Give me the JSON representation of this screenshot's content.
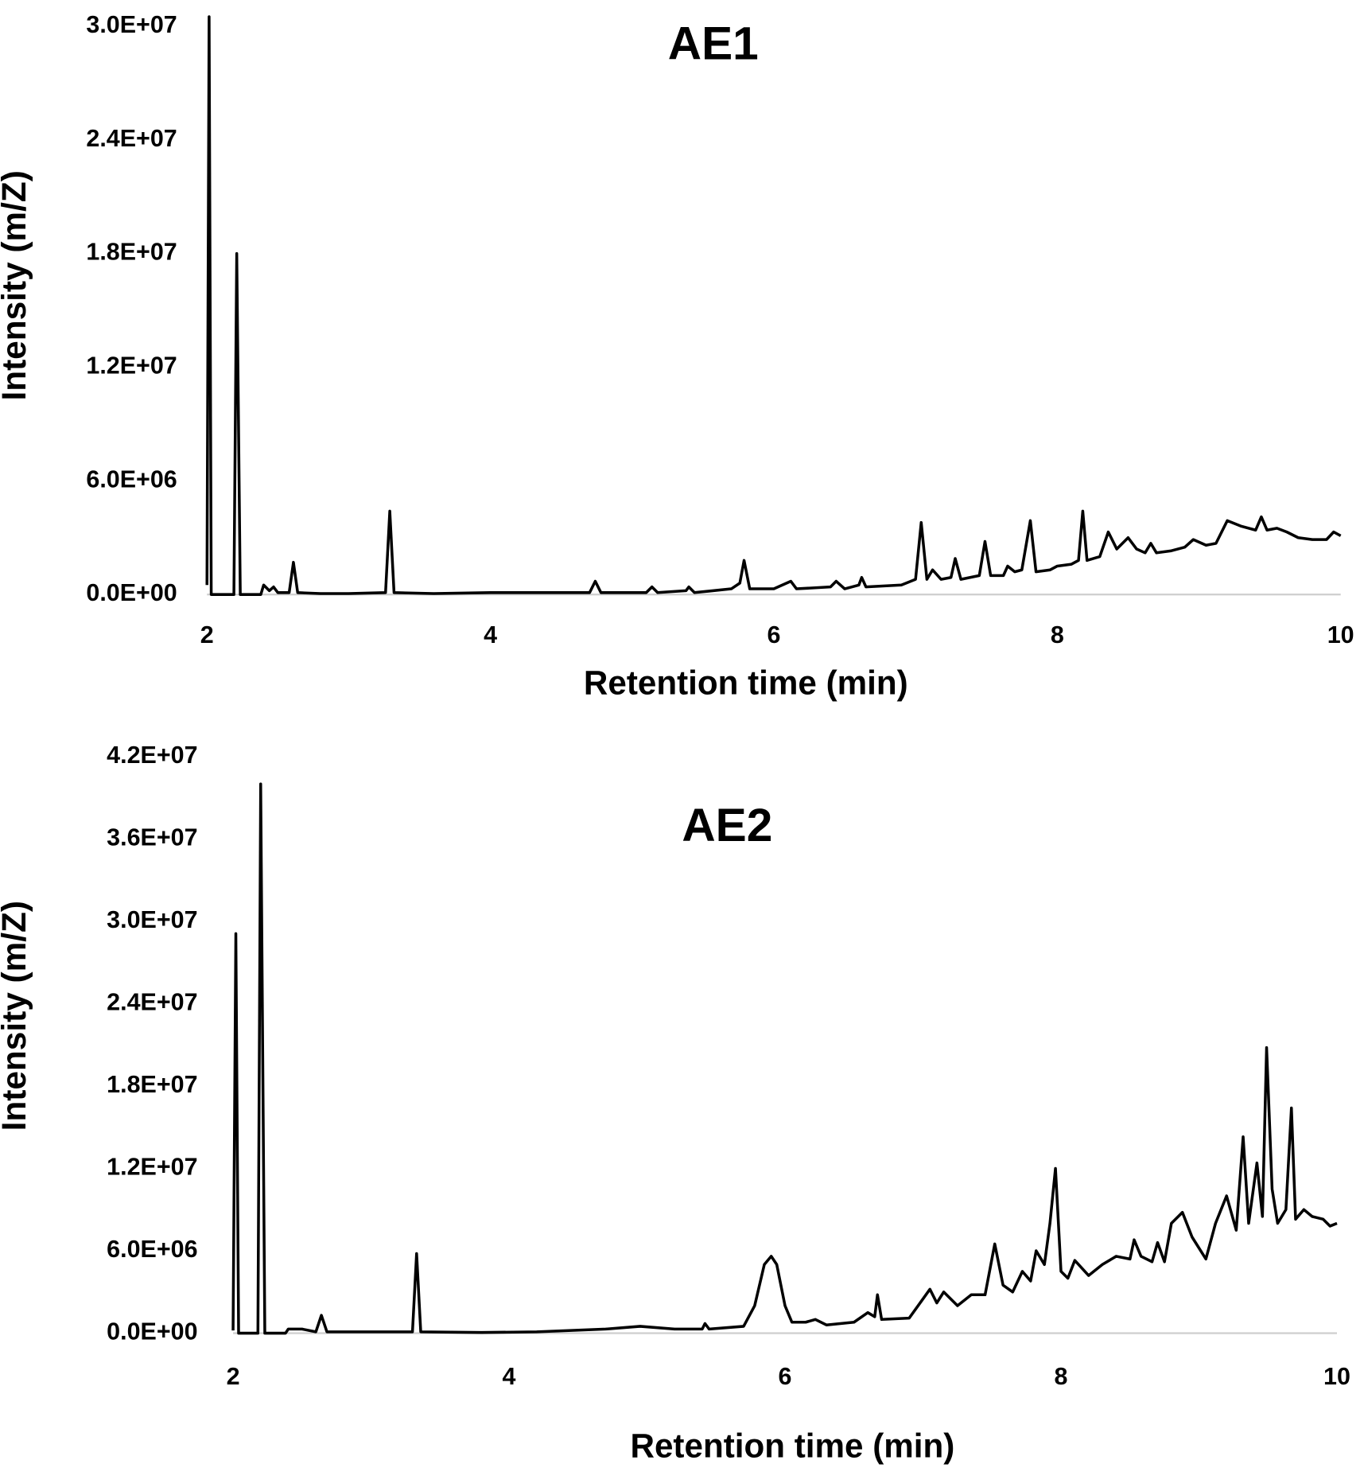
{
  "chart_data": [
    {
      "type": "line",
      "title": "AE1",
      "xlabel": "Retention time (min)",
      "ylabel": "Intensity (m/Z)",
      "color": "#000000",
      "xlim": [
        2,
        10
      ],
      "xticks": [
        2,
        4,
        6,
        8,
        10
      ],
      "ylim": [
        0,
        30000000
      ],
      "yticks": [
        {
          "value": 0,
          "label": "0.0E+00"
        },
        {
          "value": 6000000,
          "label": "6.0E+06"
        },
        {
          "value": 12000000,
          "label": "1.2E+07"
        },
        {
          "value": 18000000,
          "label": "1.8E+07"
        },
        {
          "value": 24000000,
          "label": "2.4E+07"
        },
        {
          "value": 30000000,
          "label": "3.0E+07"
        }
      ],
      "x": [
        2,
        2.015,
        2.03,
        2.19,
        2.21,
        2.235,
        2.38,
        2.4,
        2.44,
        2.47,
        2.5,
        2.58,
        2.61,
        2.64,
        2.8,
        3,
        3.26,
        3.29,
        3.32,
        3.6,
        4,
        4.5,
        4.7,
        4.74,
        4.78,
        5.1,
        5.14,
        5.18,
        5.38,
        5.4,
        5.44,
        5.7,
        5.76,
        5.79,
        5.83,
        6,
        6.12,
        6.16,
        6.4,
        6.44,
        6.5,
        6.6,
        6.62,
        6.65,
        6.9,
        7,
        7.04,
        7.08,
        7.12,
        7.18,
        7.25,
        7.28,
        7.32,
        7.45,
        7.49,
        7.53,
        7.62,
        7.65,
        7.7,
        7.75,
        7.81,
        7.85,
        7.95,
        8,
        8.1,
        8.15,
        8.18,
        8.21,
        8.3,
        8.36,
        8.42,
        8.5,
        8.56,
        8.62,
        8.66,
        8.7,
        8.8,
        8.9,
        8.96,
        9.05,
        9.12,
        9.2,
        9.3,
        9.4,
        9.44,
        9.48,
        9.55,
        9.62,
        9.7,
        9.8,
        9.9,
        9.95,
        10
      ],
      "values": [
        500000,
        30500000,
        0,
        0,
        18000000,
        0,
        0,
        500000,
        200000,
        400000,
        100000,
        100000,
        1700000,
        100000,
        50000,
        50000,
        100000,
        4400000,
        100000,
        50000,
        100000,
        100000,
        100000,
        700000,
        100000,
        100000,
        400000,
        100000,
        200000,
        400000,
        100000,
        300000,
        600000,
        1800000,
        300000,
        300000,
        700000,
        300000,
        400000,
        700000,
        300000,
        500000,
        900000,
        400000,
        500000,
        800000,
        3800000,
        800000,
        1300000,
        800000,
        900000,
        1900000,
        800000,
        1000000,
        2800000,
        1000000,
        1000000,
        1500000,
        1200000,
        1300000,
        3900000,
        1200000,
        1300000,
        1500000,
        1600000,
        1800000,
        4400000,
        1800000,
        2000000,
        3300000,
        2400000,
        3000000,
        2400000,
        2200000,
        2700000,
        2200000,
        2300000,
        2500000,
        2900000,
        2600000,
        2700000,
        3900000,
        3600000,
        3400000,
        4100000,
        3400000,
        3500000,
        3300000,
        3000000,
        2900000,
        2900000,
        3300000,
        3100000
      ]
    },
    {
      "type": "line",
      "title": "AE2",
      "xlabel": "Retention time (min)",
      "ylabel": "Intensity (m/Z)",
      "color": "#000000",
      "xlim": [
        2,
        10
      ],
      "xticks": [
        2,
        4,
        6,
        8,
        10
      ],
      "ylim": [
        0,
        42000000
      ],
      "yticks": [
        {
          "value": 0,
          "label": "0.0E+00"
        },
        {
          "value": 6000000,
          "label": "6.0E+06"
        },
        {
          "value": 12000000,
          "label": "1.2E+07"
        },
        {
          "value": 18000000,
          "label": "1.8E+07"
        },
        {
          "value": 24000000,
          "label": "2.4E+07"
        },
        {
          "value": 30000000,
          "label": "3.0E+07"
        },
        {
          "value": 36000000,
          "label": "3.6E+07"
        },
        {
          "value": 42000000,
          "label": "4.2E+07"
        }
      ],
      "x": [
        2,
        2.02,
        2.04,
        2.18,
        2.2,
        2.23,
        2.38,
        2.4,
        2.5,
        2.6,
        2.64,
        2.68,
        3,
        3.3,
        3.33,
        3.36,
        3.8,
        4.2,
        4.45,
        4.7,
        4.95,
        5.2,
        5.4,
        5.42,
        5.45,
        5.7,
        5.78,
        5.85,
        5.9,
        5.94,
        6,
        6.05,
        6.15,
        6.22,
        6.3,
        6.5,
        6.6,
        6.65,
        6.67,
        6.7,
        6.9,
        7,
        7.05,
        7.1,
        7.15,
        7.25,
        7.35,
        7.45,
        7.52,
        7.58,
        7.65,
        7.72,
        7.78,
        7.82,
        7.88,
        7.92,
        7.96,
        8,
        8.05,
        8.1,
        8.2,
        8.3,
        8.4,
        8.5,
        8.53,
        8.58,
        8.66,
        8.7,
        8.75,
        8.8,
        8.88,
        8.95,
        9.05,
        9.12,
        9.2,
        9.27,
        9.32,
        9.36,
        9.42,
        9.46,
        9.49,
        9.53,
        9.57,
        9.63,
        9.67,
        9.7,
        9.76,
        9.82,
        9.9,
        9.95,
        10
      ],
      "values": [
        200000,
        29100000,
        0,
        0,
        40000000,
        0,
        0,
        300000,
        300000,
        100000,
        1300000,
        100000,
        100000,
        100000,
        5800000,
        100000,
        50000,
        100000,
        200000,
        300000,
        500000,
        300000,
        300000,
        700000,
        300000,
        500000,
        2000000,
        5000000,
        5600000,
        5000000,
        2000000,
        800000,
        800000,
        1000000,
        600000,
        800000,
        1500000,
        1200000,
        2800000,
        1000000,
        1100000,
        2500000,
        3200000,
        2200000,
        3000000,
        2000000,
        2800000,
        2800000,
        6500000,
        3500000,
        3000000,
        4500000,
        3800000,
        6000000,
        5000000,
        8000000,
        12000000,
        4500000,
        4000000,
        5300000,
        4200000,
        5000000,
        5600000,
        5400000,
        6800000,
        5600000,
        5200000,
        6600000,
        5200000,
        8000000,
        8800000,
        7000000,
        5400000,
        8000000,
        10000000,
        7500000,
        14300000,
        8000000,
        12400000,
        8500000,
        20800000,
        10500000,
        8000000,
        9000000,
        16400000,
        8300000,
        9000000,
        8500000,
        8300000,
        7800000,
        8000000
      ]
    }
  ]
}
